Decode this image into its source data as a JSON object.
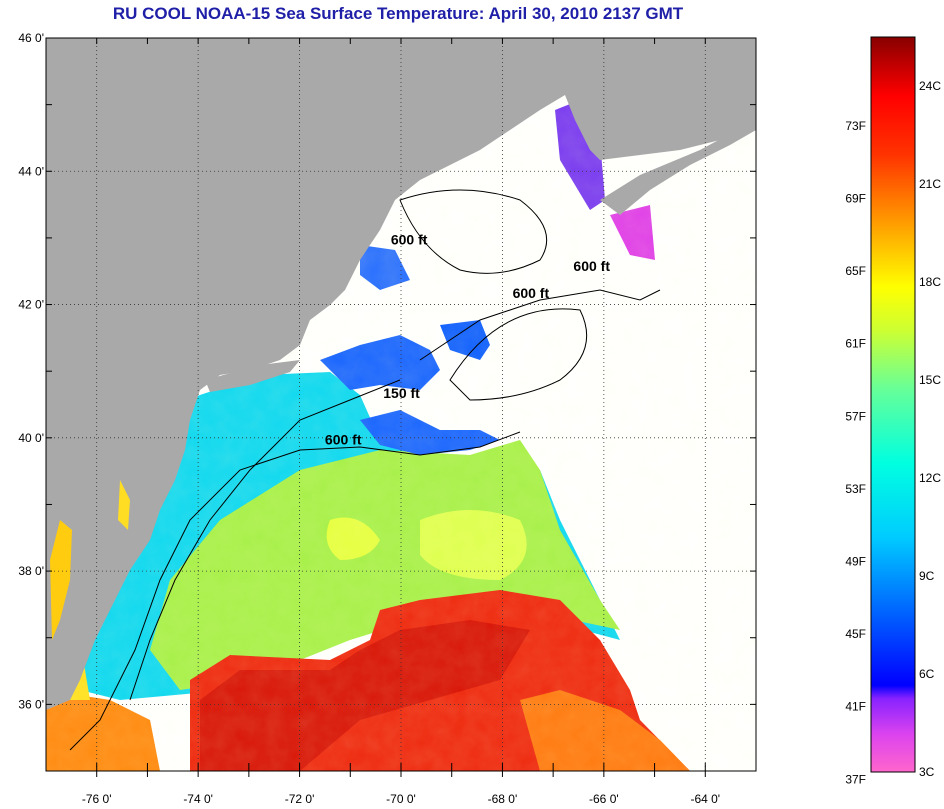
{
  "title": "RU COOL  NOAA-15  Sea Surface Temperature:  April 30, 2010 2137 GMT",
  "lat_labels": [
    {
      "lat": 46,
      "text": "46 0'"
    },
    {
      "lat": 44,
      "text": "44 0'"
    },
    {
      "lat": 42,
      "text": "42 0'"
    },
    {
      "lat": 40,
      "text": "40 0'"
    },
    {
      "lat": 38,
      "text": "38 0'"
    },
    {
      "lat": 36,
      "text": "36 0'"
    }
  ],
  "lon_labels": [
    {
      "lon": -76,
      "text": "-76 0'"
    },
    {
      "lon": -74,
      "text": "-74 0'"
    },
    {
      "lon": -72,
      "text": "-72 0'"
    },
    {
      "lon": -70,
      "text": "-70 0'"
    },
    {
      "lon": -68,
      "text": "-68 0'"
    },
    {
      "lon": -66,
      "text": "-66 0'"
    },
    {
      "lon": -64,
      "text": "-64 0'"
    }
  ],
  "contour_labels": [
    {
      "text": "600 ft",
      "lon": -70.2,
      "lat": 42.9
    },
    {
      "text": "600 ft",
      "lon": -66.6,
      "lat": 42.5
    },
    {
      "text": "600 ft",
      "lon": -67.8,
      "lat": 42.1
    },
    {
      "text": "150 ft",
      "lon": -70.35,
      "lat": 40.6
    },
    {
      "text": "600 ft",
      "lon": -71.5,
      "lat": 39.9
    }
  ],
  "colorbar": {
    "fahrenheit": [
      "73F",
      "69F",
      "65F",
      "61F",
      "57F",
      "53F",
      "49F",
      "45F",
      "41F",
      "37F"
    ],
    "celsius": [
      "24C",
      "21C",
      "18C",
      "15C",
      "12C",
      "9C",
      "6C",
      "3C"
    ],
    "range_celsius": [
      3,
      25.5
    ],
    "colors": [
      "#ff66cc",
      "#cc33ff",
      "#5522ff",
      "#0000ff",
      "#0066ff",
      "#00ccff",
      "#00ffe0",
      "#66ff99",
      "#ccff33",
      "#ffff00",
      "#ff9900",
      "#ff3300",
      "#ff0000",
      "#880000"
    ]
  },
  "colors": {
    "land": "#a9a9a9",
    "cloud": "#ffffff",
    "title": "#1f1fa8"
  },
  "extent": {
    "lon": [
      -77,
      -63
    ],
    "lat": [
      35,
      46
    ]
  }
}
